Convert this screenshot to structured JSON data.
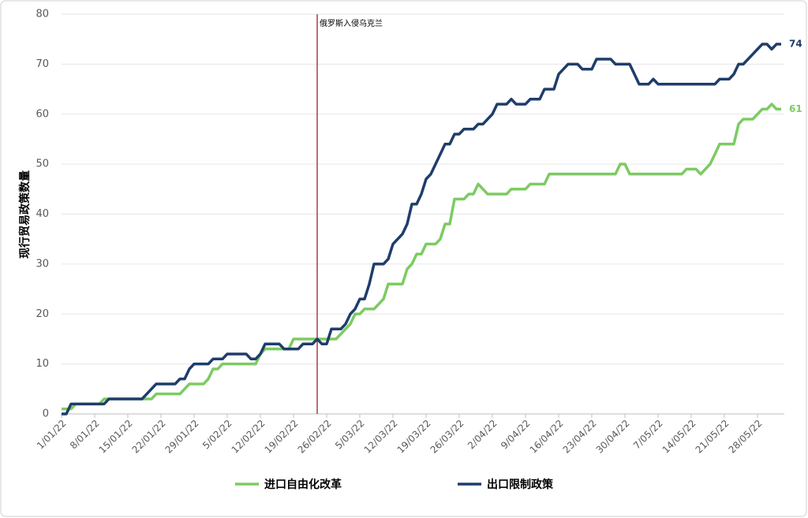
{
  "chart_data": {
    "type": "line",
    "y_label": "现行贸易政策数量",
    "ylim": [
      0,
      80
    ],
    "yticks": [
      0,
      10,
      20,
      30,
      40,
      50,
      60,
      70,
      80
    ],
    "xlim": [
      "1/01/22",
      "2/06/22"
    ],
    "xticks": [
      "1/01/22",
      "8/01/22",
      "15/01/22",
      "22/01/22",
      "29/01/22",
      "5/02/22",
      "12/02/22",
      "19/02/22",
      "26/02/22",
      "5/03/22",
      "12/03/22",
      "19/03/22",
      "26/03/22",
      "2/04/22",
      "9/04/22",
      "16/04/22",
      "23/04/22",
      "30/04/22",
      "7/05/22",
      "14/05/22",
      "21/05/22",
      "28/05/22"
    ],
    "grid": true,
    "annotation": {
      "x": "24/02/22",
      "text": "俄罗斯入侵乌克兰",
      "color": "#a31d1d"
    },
    "series": [
      {
        "name": "进口自由化改革",
        "color": "#7ccb62",
        "x": [
          "1/01/22",
          "3/01/22",
          "4/01/22",
          "9/01/22",
          "10/01/22",
          "20/01/22",
          "21/01/22",
          "26/01/22",
          "27/01/22",
          "28/01/22",
          "31/01/22",
          "1/02/22",
          "2/02/22",
          "3/02/22",
          "4/02/22",
          "11/02/22",
          "12/02/22",
          "13/02/22",
          "18/02/22",
          "19/02/22",
          "28/02/22",
          "1/03/22",
          "2/03/22",
          "3/03/22",
          "4/03/22",
          "5/03/22",
          "6/03/22",
          "8/03/22",
          "9/03/22",
          "10/03/22",
          "11/03/22",
          "14/03/22",
          "15/03/22",
          "16/03/22",
          "17/03/22",
          "18/03/22",
          "19/03/22",
          "21/03/22",
          "22/03/22",
          "23/03/22",
          "24/03/22",
          "25/03/22",
          "27/03/22",
          "28/03/22",
          "29/03/22",
          "30/03/22",
          "31/03/22",
          "1/04/22",
          "5/04/22",
          "6/04/22",
          "9/04/22",
          "10/04/22",
          "13/04/22",
          "14/04/22",
          "28/04/22",
          "29/04/22",
          "30/04/22",
          "1/05/22",
          "12/05/22",
          "13/05/22",
          "15/05/22",
          "16/05/22",
          "17/05/22",
          "18/05/22",
          "19/05/22",
          "20/05/22",
          "23/05/22",
          "24/05/22",
          "25/05/22",
          "27/05/22",
          "28/05/22",
          "29/05/22",
          "30/05/22",
          "31/05/22",
          "1/06/22",
          "2/06/22"
        ],
        "values": [
          1,
          1,
          2,
          2,
          3,
          3,
          4,
          4,
          5,
          6,
          6,
          7,
          9,
          9,
          10,
          10,
          12,
          13,
          13,
          15,
          15,
          16,
          17,
          18,
          20,
          20,
          21,
          21,
          22,
          23,
          26,
          26,
          29,
          30,
          32,
          32,
          34,
          34,
          35,
          38,
          38,
          43,
          43,
          44,
          44,
          46,
          45,
          44,
          44,
          45,
          45,
          46,
          46,
          48,
          48,
          50,
          50,
          48,
          48,
          49,
          49,
          48,
          49,
          50,
          52,
          54,
          54,
          58,
          59,
          59,
          60,
          61,
          61,
          62,
          61,
          61
        ]
      },
      {
        "name": "出口限制政策",
        "color": "#1f3d6b",
        "x": [
          "1/01/22",
          "2/01/22",
          "3/01/22",
          "10/01/22",
          "11/01/22",
          "18/01/22",
          "19/01/22",
          "20/01/22",
          "21/01/22",
          "25/01/22",
          "26/01/22",
          "27/01/22",
          "28/01/22",
          "29/01/22",
          "1/02/22",
          "2/02/22",
          "4/02/22",
          "5/02/22",
          "9/02/22",
          "10/02/22",
          "11/02/22",
          "12/02/22",
          "13/02/22",
          "16/02/22",
          "17/02/22",
          "20/02/22",
          "21/02/22",
          "23/02/22",
          "24/02/22",
          "25/02/22",
          "26/02/22",
          "27/02/22",
          "1/03/22",
          "2/03/22",
          "3/03/22",
          "4/03/22",
          "5/03/22",
          "6/03/22",
          "7/03/22",
          "8/03/22",
          "10/03/22",
          "11/03/22",
          "12/03/22",
          "13/03/22",
          "14/03/22",
          "15/03/22",
          "16/03/22",
          "17/03/22",
          "18/03/22",
          "19/03/22",
          "20/03/22",
          "21/03/22",
          "22/03/22",
          "23/03/22",
          "24/03/22",
          "25/03/22",
          "26/03/22",
          "27/03/22",
          "29/03/22",
          "30/03/22",
          "31/03/22",
          "1/04/22",
          "2/04/22",
          "3/04/22",
          "5/04/22",
          "6/04/22",
          "7/04/22",
          "9/04/22",
          "10/04/22",
          "12/04/22",
          "13/04/22",
          "15/04/22",
          "16/04/22",
          "17/04/22",
          "18/04/22",
          "20/04/22",
          "21/04/22",
          "23/04/22",
          "24/04/22",
          "27/04/22",
          "28/04/22",
          "1/05/22",
          "2/05/22",
          "3/05/22",
          "5/05/22",
          "6/05/22",
          "7/05/22",
          "19/05/22",
          "20/05/22",
          "22/05/22",
          "23/05/22",
          "24/05/22",
          "25/05/22",
          "26/05/22",
          "27/05/22",
          "28/05/22",
          "29/05/22",
          "30/05/22",
          "31/05/22",
          "1/06/22",
          "2/06/22"
        ],
        "values": [
          0,
          0,
          2,
          2,
          3,
          3,
          4,
          5,
          6,
          6,
          7,
          7,
          9,
          10,
          10,
          11,
          11,
          12,
          12,
          11,
          11,
          12,
          14,
          14,
          13,
          13,
          14,
          14,
          15,
          14,
          14,
          17,
          17,
          18,
          20,
          21,
          23,
          23,
          26,
          30,
          30,
          31,
          34,
          35,
          36,
          38,
          42,
          42,
          44,
          47,
          48,
          50,
          52,
          54,
          54,
          56,
          56,
          57,
          57,
          58,
          58,
          59,
          60,
          62,
          62,
          63,
          62,
          62,
          63,
          63,
          65,
          65,
          68,
          69,
          70,
          70,
          69,
          69,
          71,
          71,
          70,
          70,
          68,
          66,
          66,
          67,
          66,
          66,
          67,
          67,
          68,
          70,
          70,
          71,
          72,
          73,
          74,
          74,
          73,
          74,
          74
        ]
      }
    ]
  }
}
